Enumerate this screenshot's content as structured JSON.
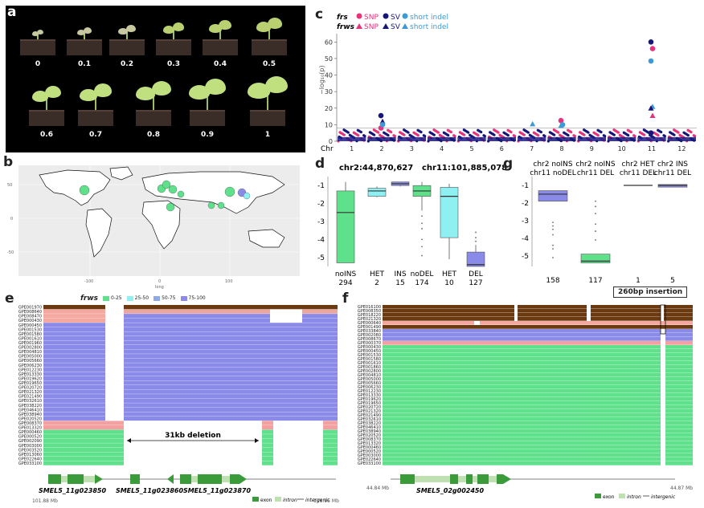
{
  "panels": {
    "a": "a",
    "b": "b",
    "c": "c",
    "d": "d",
    "e": "e",
    "f": "f",
    "g": "g"
  },
  "panel_a": {
    "scores_row1": [
      "0",
      "0.1",
      "0.2",
      "0.3",
      "0.4",
      "0.5"
    ],
    "scores_row2": [
      "0.6",
      "0.7",
      "0.8",
      "0.9",
      "1"
    ]
  },
  "panel_b": {
    "x_axis_label": "long",
    "y_axis_label": "lat",
    "x_ticks": [
      "-100",
      "0",
      "100"
    ],
    "y_ticks": [
      "50",
      "0",
      "-50"
    ]
  },
  "panel_c": {
    "legend_frs": "frs",
    "legend_frws": "frws",
    "snp": "SNP",
    "sv": "SV",
    "short_indel": "short indel",
    "y_axis_label": "−log₁₀(p)",
    "chr_label": "Chr",
    "colors": {
      "frs_snp": "#e8327c",
      "frs_sv": "#16167a",
      "frs_indel": "#3d9ad6",
      "frws_snp": "#e8327c",
      "frws_sv": "#16167a",
      "frws_indel": "#3d9ad6"
    },
    "chart_data": {
      "type": "scatter",
      "x_categories": [
        "1",
        "2",
        "3",
        "4",
        "5",
        "6",
        "7",
        "8",
        "9",
        "10",
        "11",
        "12"
      ],
      "yticks": [
        "0",
        "10",
        "20",
        "30",
        "40",
        "50",
        "60"
      ],
      "ylim": [
        0,
        65
      ],
      "threshold": 8,
      "peaks": [
        {
          "chr": "2",
          "series": "frs SV",
          "y": 15.5
        },
        {
          "chr": "2",
          "series": "frws SV",
          "y": 12
        },
        {
          "chr": "2",
          "series": "frs SNP",
          "y": 8
        },
        {
          "chr": "2",
          "series": "frs short indel",
          "y": 10
        },
        {
          "chr": "8",
          "series": "frs SNP",
          "y": 12.5
        },
        {
          "chr": "8",
          "series": "frs short indel",
          "y": 10
        },
        {
          "chr": "8",
          "series": "frws short indel",
          "y": 9.5
        },
        {
          "chr": "7",
          "series": "frws short indel",
          "y": 10.5
        },
        {
          "chr": "11",
          "series": "frs SV",
          "y": 60
        },
        {
          "chr": "11",
          "series": "frs SNP",
          "y": 56
        },
        {
          "chr": "11",
          "series": "frs short indel",
          "y": 48.5
        },
        {
          "chr": "11",
          "series": "frws short indel",
          "y": 21
        },
        {
          "chr": "11",
          "series": "frws SV",
          "y": 20
        },
        {
          "chr": "11",
          "series": "frws SNP",
          "y": 15.5
        },
        {
          "chr": "11",
          "series": "frs SV",
          "y": 5
        }
      ]
    }
  },
  "panel_d": {
    "left_title": "chr2:44,870,627",
    "right_title": "chr11:101,885,078",
    "left_groups": [
      {
        "name": "noINS",
        "n": "294"
      },
      {
        "name": "HET",
        "n": "2"
      },
      {
        "name": "INS",
        "n": "15"
      }
    ],
    "right_groups": [
      {
        "name": "noDEL",
        "n": "174"
      },
      {
        "name": "HET",
        "n": "10"
      },
      {
        "name": "DEL",
        "n": "127"
      }
    ],
    "yticks": [
      "-1",
      "-2",
      "-3",
      "-4",
      "-5"
    ],
    "chart_data": {
      "type": "box",
      "ylim": [
        -5.5,
        -0.5
      ],
      "left": [
        {
          "group": "noINS",
          "q1": -5.3,
          "median": -2.5,
          "q3": -1.3,
          "min": -5.3,
          "max": -0.8
        },
        {
          "group": "HET",
          "q1": -1.6,
          "median": -1.3,
          "q3": -1.15,
          "min": -1.65,
          "max": -1.05
        },
        {
          "group": "INS",
          "q1": -1.0,
          "median": -0.9,
          "q3": -0.8,
          "min": -1.05,
          "max": -0.8
        }
      ],
      "right": [
        {
          "group": "noDEL",
          "q1": -1.6,
          "median": -1.3,
          "q3": -1.0,
          "min": -2.4,
          "max": -0.8
        },
        {
          "group": "HET",
          "q1": -3.9,
          "median": -1.6,
          "q3": -1.1,
          "min": -5.1,
          "max": -0.9
        },
        {
          "group": "DEL",
          "q1": -5.5,
          "median": -5.4,
          "q3": -4.7,
          "min": -5.5,
          "max": -4.3
        }
      ]
    }
  },
  "panel_g": {
    "groups": [
      {
        "line1": "chr2 noINS",
        "line2": "chr11 noDEL",
        "n": "158"
      },
      {
        "line1": "chr2 noINS",
        "line2": "chr11 DEL",
        "n": "117"
      },
      {
        "line1": "chr2 HET",
        "line2": "chr11 DEL",
        "n": "1"
      },
      {
        "line1": "chr2 INS",
        "line2": "chr11 DEL",
        "n": "5"
      }
    ],
    "yticks": [
      "-1",
      "-2",
      "-3",
      "-4",
      "-5"
    ],
    "chart_data": {
      "type": "box",
      "ylim": [
        -5.6,
        -0.5
      ],
      "boxes": [
        {
          "group": "chr2 noINS chr11 noDEL",
          "q1": -1.9,
          "median": -1.5,
          "q3": -1.3
        },
        {
          "group": "chr2 noINS chr11 DEL",
          "q1": -5.4,
          "median": -5.3,
          "q3": -4.9
        },
        {
          "group": "chr2 HET chr11 DEL",
          "median": -1.0
        },
        {
          "group": "chr2 INS chr11 DEL",
          "q1": -1.1,
          "median": -1.0,
          "q3": -0.95
        }
      ]
    }
  },
  "panel_e": {
    "legend_title": "frws",
    "legend_items": [
      {
        "label": "0-25",
        "color": "#5fe08a"
      },
      {
        "label": "25-50",
        "color": "#8ef0f0"
      },
      {
        "label": "50-75",
        "color": "#8ea8e8"
      },
      {
        "label": "75-100",
        "color": "#8a8ae8"
      }
    ],
    "rows": [
      "GPE001970",
      "GPE008640",
      "GPE008470",
      "GPE000430",
      "GPE000450",
      "GPE001530",
      "GPE001580",
      "GPE001610",
      "GPE001960",
      "GPE002800",
      "GPE004810",
      "GPE005000",
      "GPE005660",
      "GPE006230",
      "GPE012230",
      "GPE013330",
      "GPE019620",
      "GPE019650",
      "GPE020720",
      "GPE021320",
      "GPE021490",
      "GPE032610",
      "GPE038220",
      "GPE046410",
      "GPE038940",
      "GPE020520",
      "GPE008370",
      "GPE013320",
      "GPE000460",
      "GPE000520",
      "GPE002090",
      "GPE003000",
      "GPE003520",
      "GPE013060",
      "GPE022640",
      "GPE033100"
    ],
    "deletion_label": "31kb deletion",
    "genes": [
      "SMEL5_11g023850",
      "SMEL5_11g023860",
      "SMEL5_11g023870"
    ],
    "axis_left": "101.88 Mb",
    "axis_right": "101.95 Mb",
    "key_exon": "exon",
    "key_intron": "intron",
    "key_intergenic": "intergenic"
  },
  "panel_f": {
    "rows": [
      "GPE016100",
      "GPE008350",
      "GPE018220",
      "GPE021320",
      "GPE000640",
      "GPE001490",
      "GPE033840",
      "GPE002080",
      "GPE008670",
      "GPE000370",
      "GPE000430",
      "GPE000450",
      "GPE001530",
      "GPE001580",
      "GPE001610",
      "GPE001860",
      "GPE002800",
      "GPE004810",
      "GPE005000",
      "GPE005660",
      "GPE006230",
      "GPE012230",
      "GPE013330",
      "GPE019620",
      "GPE019650",
      "GPE020720",
      "GPE021320",
      "GPE021490",
      "GPE032610",
      "GPE038220",
      "GPE046410",
      "GPE038940",
      "GPE020520",
      "GPE008370",
      "GPE013320",
      "GPE000460",
      "GPE000520",
      "GPE003000",
      "GPE022640",
      "GPE033100"
    ],
    "insertion_label": "260bp insertion",
    "gene": "SMEL5_02g002450",
    "axis_left": "44.84 Mb",
    "axis_right": "44.87 Mb",
    "key_exon": "exon",
    "key_intron": "intron",
    "key_intergenic": "intergenic"
  }
}
